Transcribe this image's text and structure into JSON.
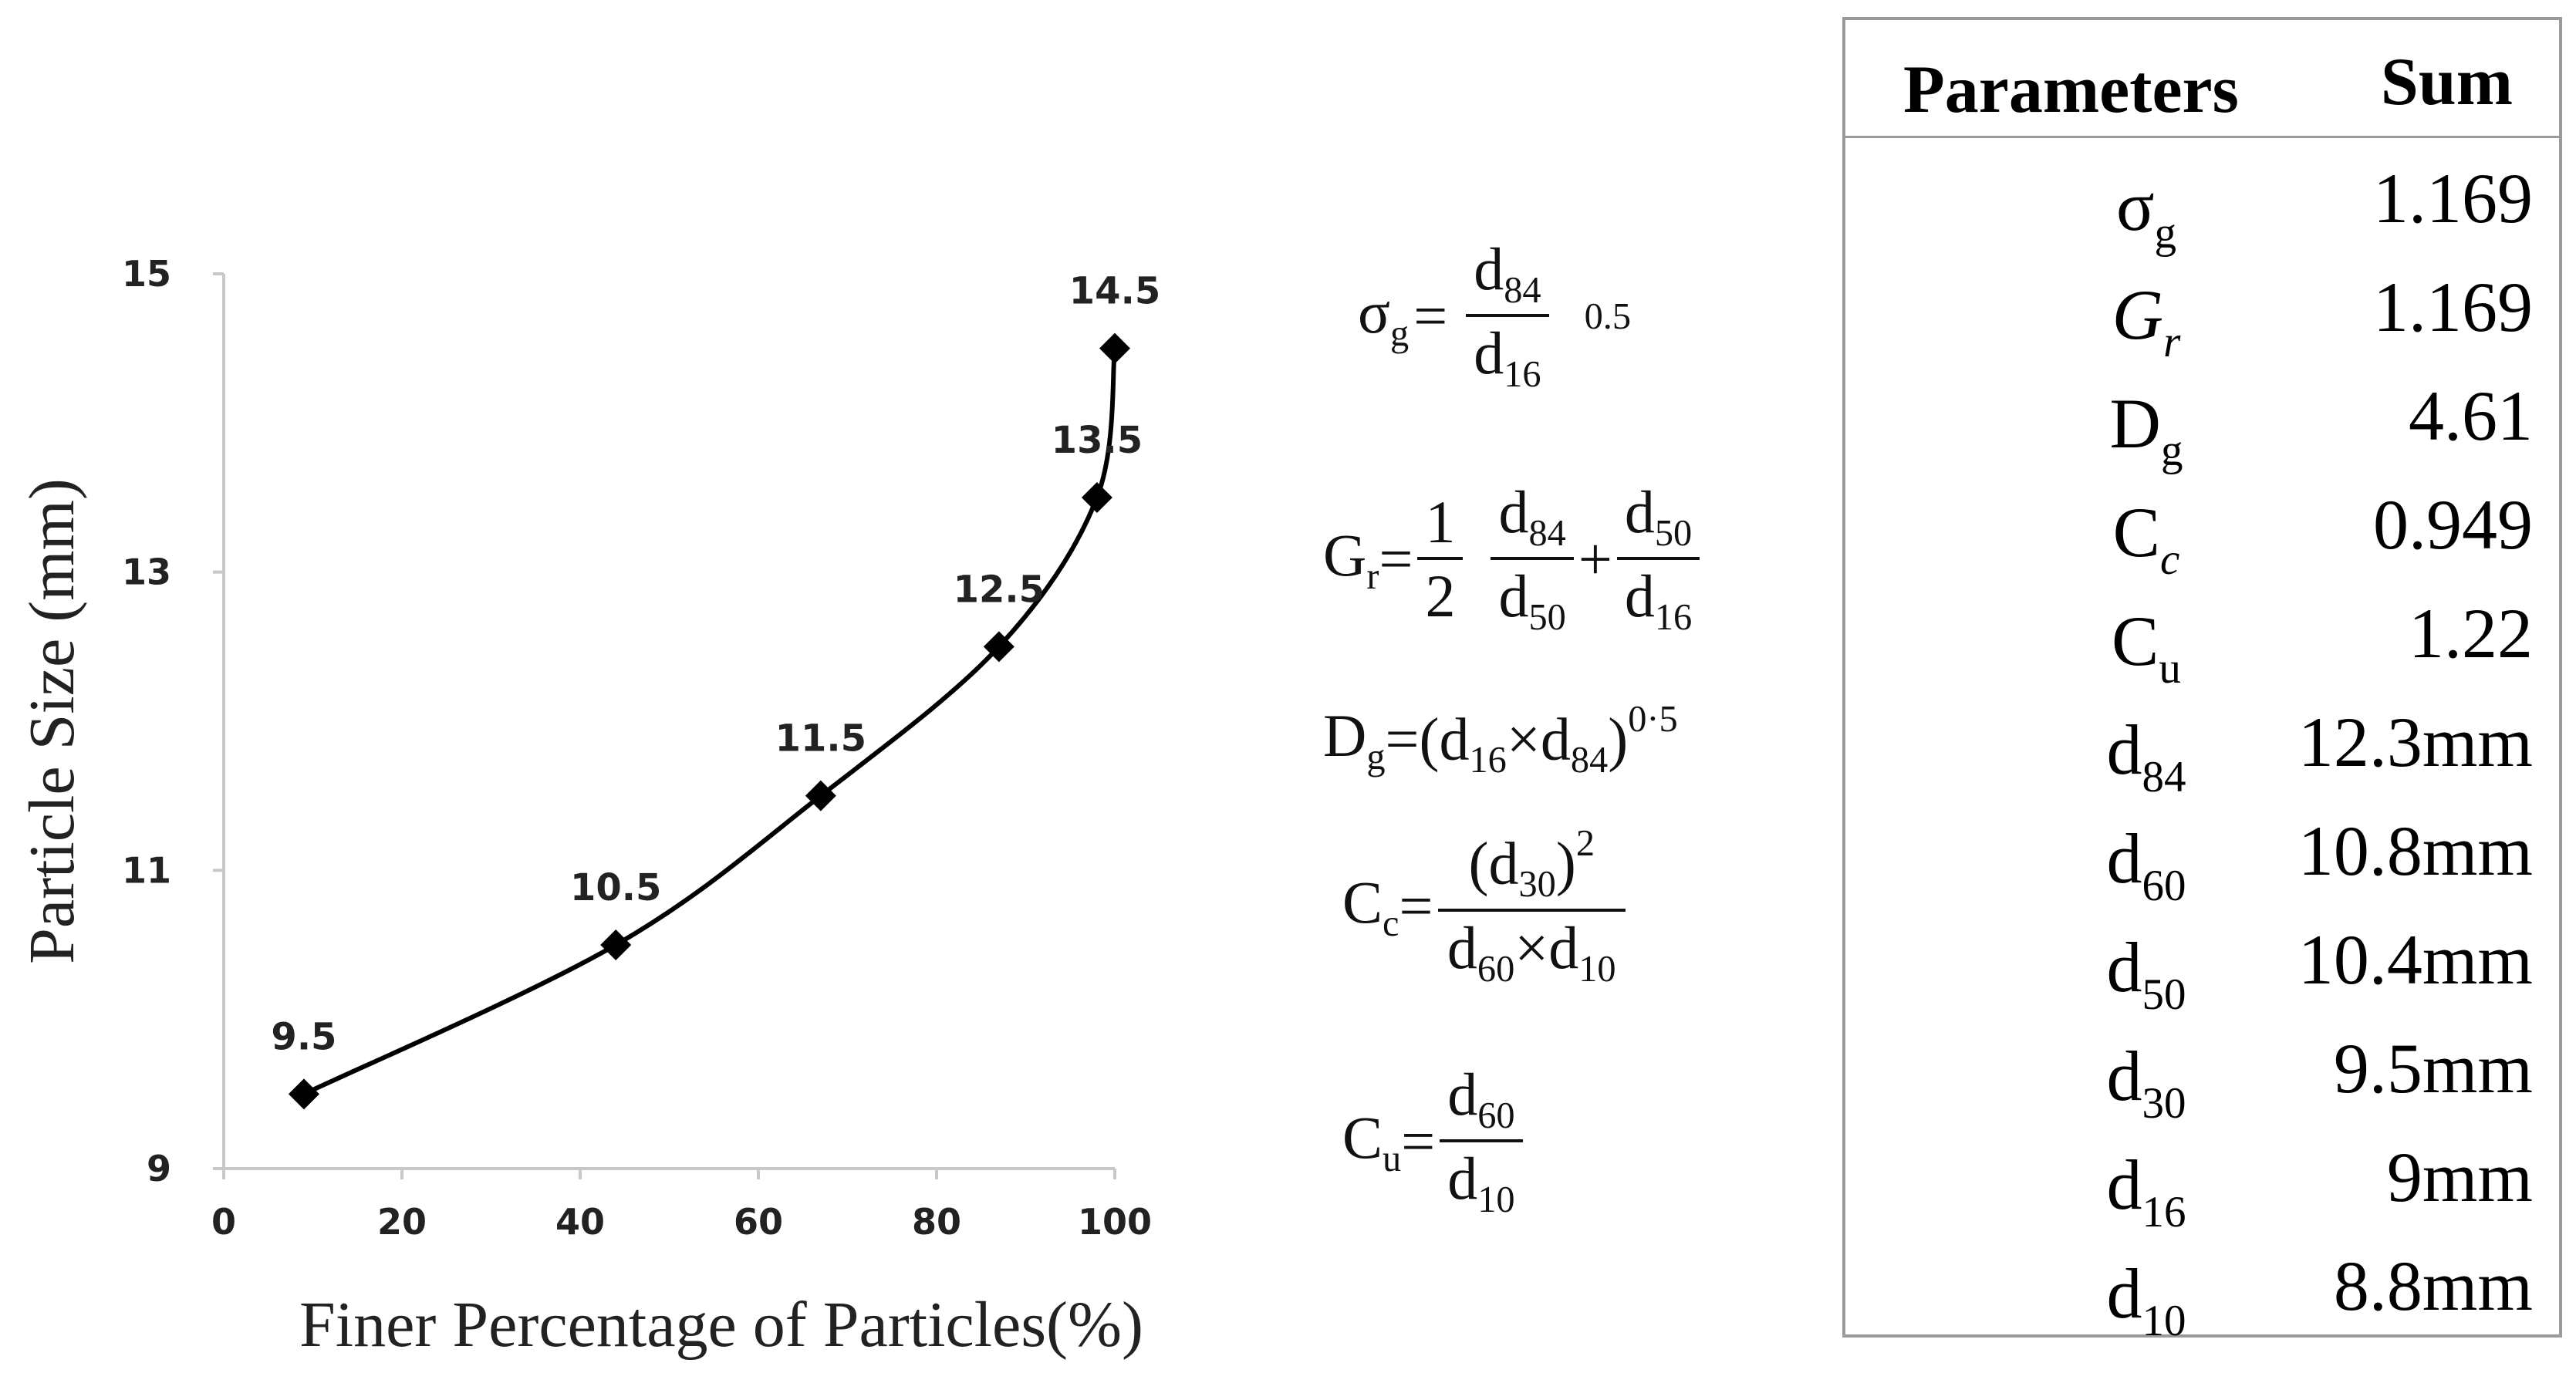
{
  "chart_data": {
    "type": "line",
    "xlabel": "Finer Percentage of Particles(%)",
    "ylabel": "Particle Size (mm)",
    "xlim": [
      0,
      100
    ],
    "ylim": [
      9,
      15
    ],
    "x_ticks": [
      "0",
      "20",
      "40",
      "60",
      "80",
      "100"
    ],
    "y_ticks": [
      "9",
      "11",
      "13",
      "15"
    ],
    "grid": false,
    "marker": "diamond",
    "series": [
      {
        "x": [
          9,
          44,
          67,
          87,
          98,
          100
        ],
        "y": [
          9.5,
          10.5,
          11.5,
          12.5,
          13.5,
          14.5
        ],
        "labels": [
          "9.5",
          "10.5",
          "11.5",
          "12.5",
          "13.5",
          "14.5"
        ]
      }
    ]
  },
  "formulas": {
    "sigma_g": {
      "lhs": "σ",
      "lhs_sub": "g",
      "eq": "=",
      "num": "d",
      "num_sub": "84",
      "den": "d",
      "den_sub": "16",
      "exp": "0.5"
    },
    "g_r": {
      "lhs": "G",
      "lhs_sub": "r",
      "eq": "=",
      "half_num": "1",
      "half_den": "2",
      "f1_num": "d",
      "f1_num_sub": "84",
      "f1_den": "d",
      "f1_den_sub": "50",
      "plus": "+",
      "f2_num": "d",
      "f2_num_sub": "50",
      "f2_den": "d",
      "f2_den_sub": "16"
    },
    "d_g": {
      "lhs": "D",
      "lhs_sub": "g",
      "eq": "=(",
      "a": "d",
      "a_sub": "16",
      "times": "×",
      "b": "d",
      "b_sub": "84",
      "close": ")",
      "exp": "0·5"
    },
    "c_c": {
      "lhs": "C",
      "lhs_sub": "c",
      "eq": "=",
      "num_open": "(d",
      "num_sub": "30",
      "num_close": ")",
      "num_exp": "2",
      "den_a": "d",
      "den_a_sub": "60",
      "times": "×",
      "den_b": "d",
      "den_b_sub": "10"
    },
    "c_u": {
      "lhs": "C",
      "lhs_sub": "u",
      "eq": "=",
      "num": "d",
      "num_sub": "60",
      "den": "d",
      "den_sub": "10"
    }
  },
  "table": {
    "header_param": "Parameters",
    "header_sum": "Sum",
    "rows": [
      {
        "base": "σ",
        "sub": "g",
        "value": "1.169"
      },
      {
        "base": "G",
        "sub": "r",
        "value": "1.169",
        "italic": true
      },
      {
        "base": "D",
        "sub": "g",
        "value": "4.61"
      },
      {
        "base": "C",
        "sub": "c",
        "value": "0.949",
        "sub_italic": true
      },
      {
        "base": "C",
        "sub": "u",
        "value": "1.22"
      },
      {
        "base": "d",
        "sub": "84",
        "value": "12.3mm"
      },
      {
        "base": "d",
        "sub": "60",
        "value": "10.8mm"
      },
      {
        "base": "d",
        "sub": "50",
        "value": "10.4mm"
      },
      {
        "base": "d",
        "sub": "30",
        "value": "9.5mm"
      },
      {
        "base": "d",
        "sub": "16",
        "value": "9mm"
      },
      {
        "base": "d",
        "sub": "10",
        "value": "8.8mm"
      }
    ]
  }
}
